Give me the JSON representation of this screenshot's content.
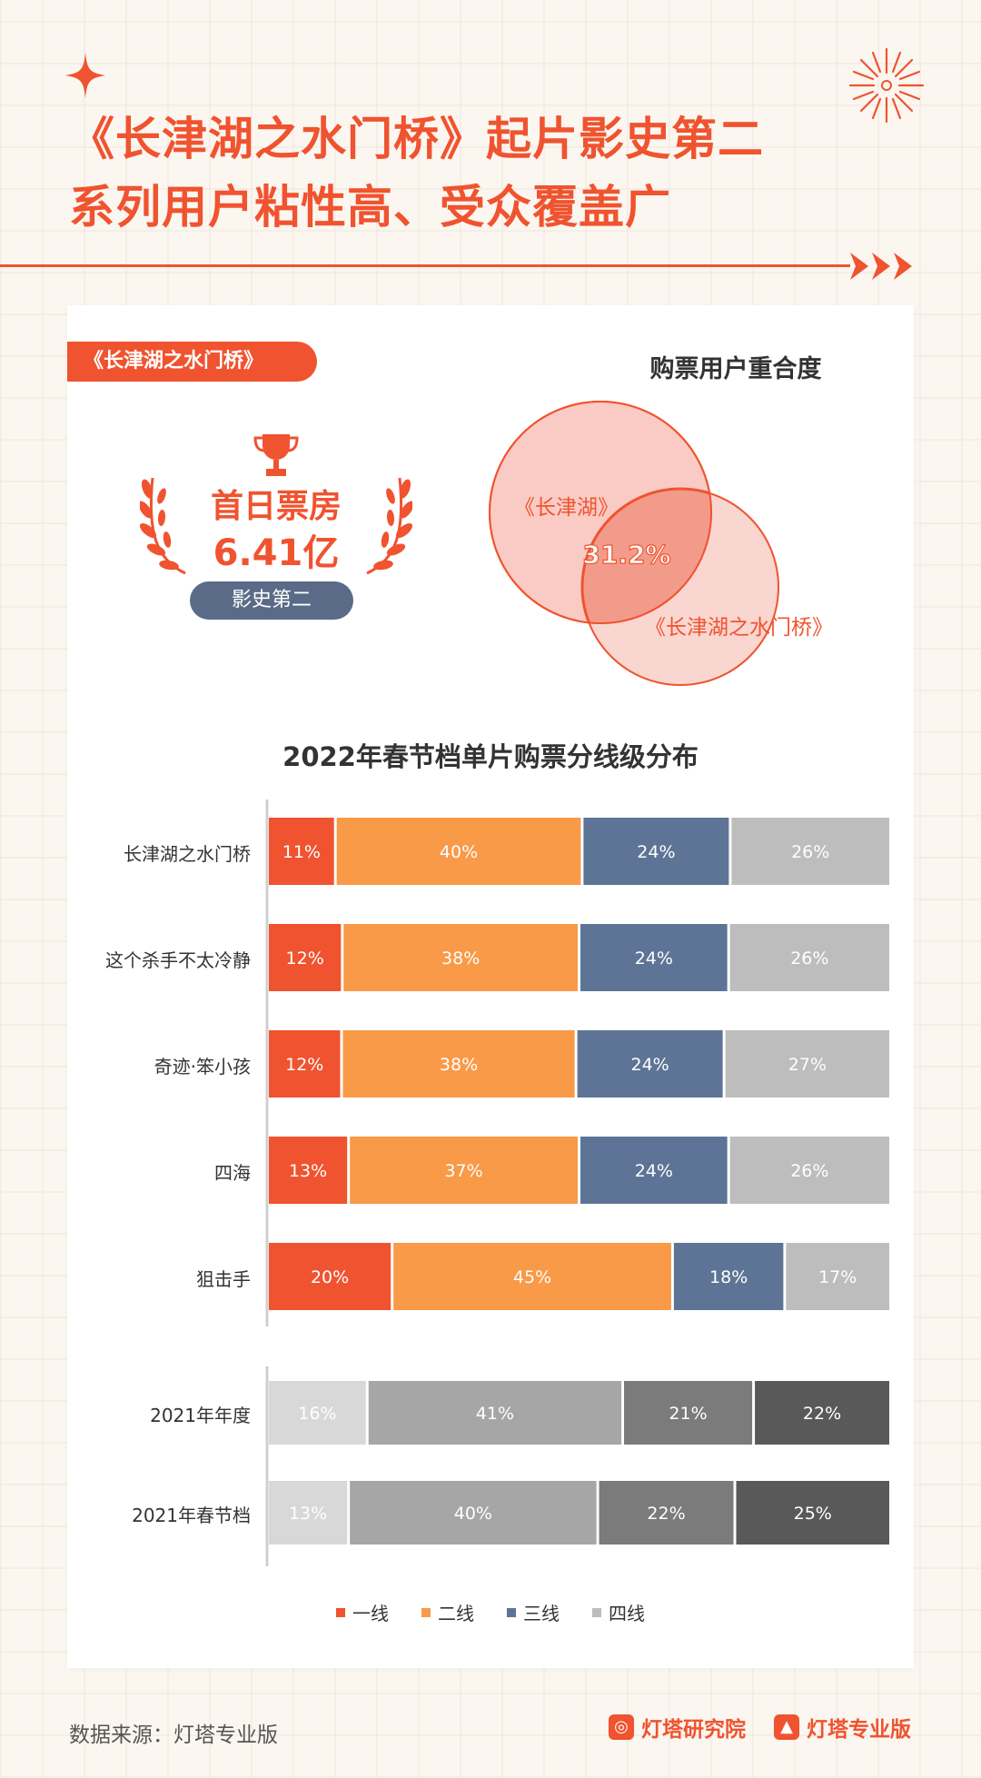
{
  "header": {
    "title_line1": "《长津湖之水门桥》起片影史第二",
    "title_line2": "系列用户粘性高、受众覆盖广"
  },
  "card": {
    "tag": "《长津湖之水门桥》",
    "award_label": "首日票房",
    "award_value": "6.41亿",
    "rank": "影史第二",
    "venn": {
      "title": "购票用户重合度",
      "left_label": "《长津湖》",
      "right_label": "《长津湖之水门桥》",
      "overlap": "31.2%"
    }
  },
  "chart_data": {
    "type": "bar",
    "orientation": "horizontal-stacked-100",
    "title": "2022年春节档单片购票分线级分布",
    "legend": [
      "一线",
      "二线",
      "三线",
      "四线"
    ],
    "colors": [
      "#f0532f",
      "#f89a48",
      "#5e7496",
      "#bdbdbd"
    ],
    "group1": {
      "categories": [
        "长津湖之水门桥",
        "这个杀手不太冷静",
        "奇迹·笨小孩",
        "四海",
        "狙击手"
      ],
      "values": [
        [
          11,
          40,
          24,
          26
        ],
        [
          12,
          38,
          24,
          26
        ],
        [
          12,
          38,
          24,
          27
        ],
        [
          13,
          37,
          24,
          26
        ],
        [
          20,
          45,
          18,
          17
        ]
      ]
    },
    "group2": {
      "categories": [
        "2021年年度",
        "2021年春节档"
      ],
      "colors": [
        "#d8d8d8",
        "#a6a6a6",
        "#7b7b7b",
        "#595959"
      ],
      "values": [
        [
          16,
          41,
          21,
          22
        ],
        [
          13,
          40,
          22,
          25
        ]
      ]
    }
  },
  "footer": {
    "source": "数据来源：灯塔专业版",
    "brand1": "灯塔研究院",
    "brand2": "灯塔专业版"
  }
}
